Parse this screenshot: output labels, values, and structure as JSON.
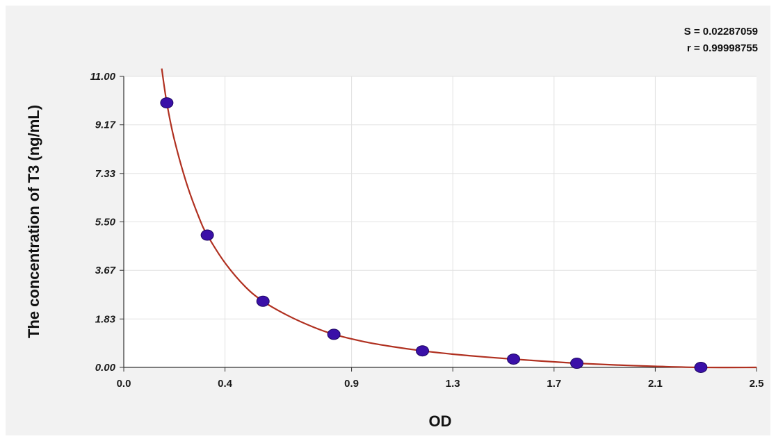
{
  "chart_data": {
    "type": "scatter",
    "xlabel": "OD",
    "ylabel": "The concentration of T3 (ng/mL)",
    "xlim": [
      0.0,
      2.5
    ],
    "ylim": [
      0.0,
      11.0
    ],
    "x_ticks": [
      "0.0",
      "0.4",
      "0.9",
      "1.3",
      "1.7",
      "2.1",
      "2.5"
    ],
    "y_ticks": [
      "0.00",
      "1.83",
      "3.67",
      "5.50",
      "7.33",
      "9.17",
      "11.00"
    ],
    "grid": true,
    "annotations": {
      "s_value": "S = 0.02287059",
      "r_value": "r = 0.99998755"
    },
    "series": [
      {
        "points": [
          {
            "x": 0.17,
            "y": 10.0
          },
          {
            "x": 0.33,
            "y": 5.0
          },
          {
            "x": 0.55,
            "y": 2.5
          },
          {
            "x": 0.83,
            "y": 1.25
          },
          {
            "x": 1.18,
            "y": 0.625
          },
          {
            "x": 1.54,
            "y": 0.313
          },
          {
            "x": 1.79,
            "y": 0.156
          },
          {
            "x": 2.28,
            "y": 0.0
          }
        ]
      }
    ],
    "fit_curve": [
      {
        "x": 0.15,
        "y": 11.3
      },
      {
        "x": 0.17,
        "y": 10.0
      },
      {
        "x": 0.2,
        "y": 8.6
      },
      {
        "x": 0.25,
        "y": 6.9
      },
      {
        "x": 0.3,
        "y": 5.6
      },
      {
        "x": 0.33,
        "y": 5.0
      },
      {
        "x": 0.4,
        "y": 3.95
      },
      {
        "x": 0.48,
        "y": 3.05
      },
      {
        "x": 0.55,
        "y": 2.5
      },
      {
        "x": 0.65,
        "y": 1.95
      },
      {
        "x": 0.75,
        "y": 1.52
      },
      {
        "x": 0.83,
        "y": 1.25
      },
      {
        "x": 0.95,
        "y": 0.97
      },
      {
        "x": 1.05,
        "y": 0.8
      },
      {
        "x": 1.18,
        "y": 0.625
      },
      {
        "x": 1.3,
        "y": 0.5
      },
      {
        "x": 1.42,
        "y": 0.4
      },
      {
        "x": 1.54,
        "y": 0.313
      },
      {
        "x": 1.65,
        "y": 0.24
      },
      {
        "x": 1.79,
        "y": 0.156
      },
      {
        "x": 1.95,
        "y": 0.09
      },
      {
        "x": 2.1,
        "y": 0.04
      },
      {
        "x": 2.28,
        "y": 0.0
      },
      {
        "x": 2.5,
        "y": 0.0
      }
    ],
    "colors": {
      "curve": "#b03020",
      "point": "#3a10a8",
      "grid": "#e2e2e2",
      "plot_bg": "#ffffff",
      "frame_bg": "#f2f2f2"
    }
  }
}
